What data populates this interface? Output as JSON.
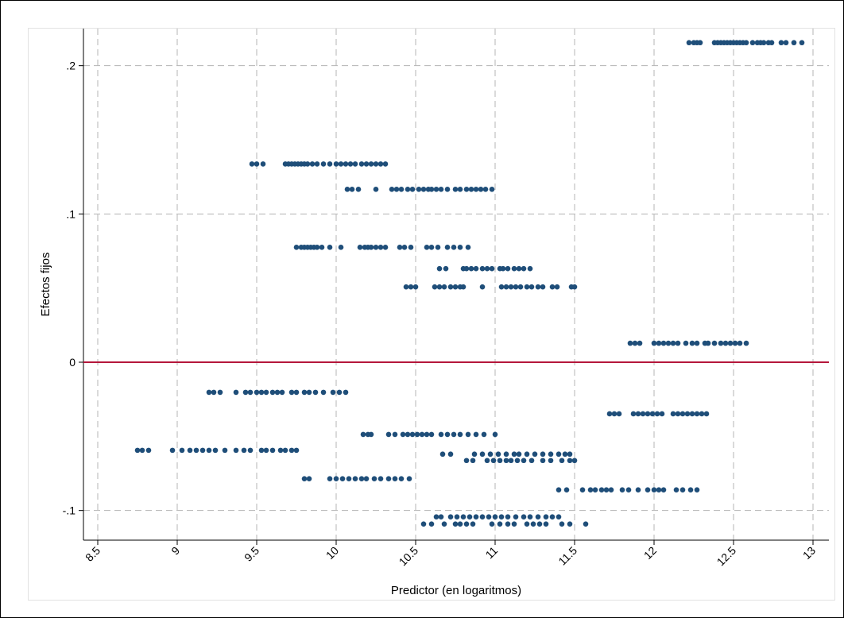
{
  "chart_data": {
    "type": "scatter",
    "xlabel": "Predictor (en logaritmos)",
    "ylabel": "Efectos fijos",
    "color": "#1f4e79",
    "grid": true,
    "hline": 0,
    "hline_color": "#b5173b",
    "xlim": [
      8.41,
      13.1
    ],
    "ylim": [
      -0.12,
      0.225
    ],
    "xticks": [
      8.5,
      9,
      9.5,
      10,
      10.5,
      11,
      11.5,
      12,
      12.5,
      13
    ],
    "yticks": [
      {
        "value": -0.1,
        "label": "-.1"
      },
      0,
      {
        "value": 0.1,
        "label": ".1"
      },
      {
        "value": 0.2,
        "label": ".2"
      }
    ],
    "series": [
      {
        "x": [
          12.22,
          12.25,
          12.27,
          12.29,
          12.38,
          12.4,
          12.42,
          12.44,
          12.46,
          12.48,
          12.5,
          12.52,
          12.54,
          12.56,
          12.58,
          12.62,
          12.65,
          12.67,
          12.69,
          12.72,
          12.74,
          12.8,
          12.83,
          12.88,
          12.93
        ],
        "values": [
          0.2155,
          0.2155,
          0.2155,
          0.2155,
          0.2155,
          0.2155,
          0.2155,
          0.2155,
          0.2155,
          0.2155,
          0.2155,
          0.2155,
          0.2155,
          0.2155,
          0.2155,
          0.2155,
          0.2155,
          0.2155,
          0.2155,
          0.2155,
          0.2155,
          0.2155,
          0.2155,
          0.2155,
          0.2155
        ]
      },
      {
        "x": [
          9.47,
          9.5,
          9.54,
          9.68,
          9.7,
          9.72,
          9.74,
          9.76,
          9.78,
          9.8,
          9.82,
          9.85,
          9.88,
          9.92,
          9.96,
          10.0,
          10.03,
          10.06,
          10.09,
          10.12,
          10.16,
          10.19,
          10.22,
          10.25,
          10.28,
          10.31
        ],
        "values": [
          0.1337,
          0.1337,
          0.1337,
          0.1337,
          0.1337,
          0.1337,
          0.1337,
          0.1337,
          0.1337,
          0.1337,
          0.1337,
          0.1337,
          0.1337,
          0.1337,
          0.1337,
          0.1337,
          0.1337,
          0.1337,
          0.1337,
          0.1337,
          0.1337,
          0.1337,
          0.1337,
          0.1337,
          0.1337,
          0.1337
        ]
      },
      {
        "x": [
          10.07,
          10.1,
          10.14,
          10.25,
          10.35,
          10.38,
          10.41,
          10.45,
          10.48,
          10.52,
          10.55,
          10.58,
          10.6,
          10.63,
          10.66,
          10.7,
          10.75,
          10.78,
          10.82,
          10.85,
          10.88,
          10.91,
          10.94,
          10.98
        ],
        "values": [
          0.1166,
          0.1166,
          0.1166,
          0.1166,
          0.1166,
          0.1166,
          0.1166,
          0.1166,
          0.1166,
          0.1166,
          0.1166,
          0.1166,
          0.1166,
          0.1166,
          0.1166,
          0.1166,
          0.1166,
          0.1166,
          0.1166,
          0.1166,
          0.1166,
          0.1166,
          0.1166,
          0.1166
        ]
      },
      {
        "x": [
          9.75,
          9.78,
          9.8,
          9.82,
          9.84,
          9.86,
          9.88,
          9.91,
          9.96,
          10.03,
          10.15,
          10.18,
          10.2,
          10.22,
          10.25,
          10.28,
          10.31,
          10.4,
          10.43,
          10.47,
          10.57,
          10.6,
          10.64,
          10.7,
          10.74,
          10.78,
          10.83
        ],
        "values": [
          0.0775,
          0.0775,
          0.0775,
          0.0775,
          0.0775,
          0.0775,
          0.0775,
          0.0775,
          0.0775,
          0.0775,
          0.0775,
          0.0775,
          0.0775,
          0.0775,
          0.0775,
          0.0775,
          0.0775,
          0.0775,
          0.0775,
          0.0775,
          0.0775,
          0.0775,
          0.0775,
          0.0775,
          0.0775,
          0.0775,
          0.0775
        ]
      },
      {
        "x": [
          10.65,
          10.69,
          10.8,
          10.82,
          10.85,
          10.88,
          10.92,
          10.95,
          10.98,
          11.03,
          11.05,
          11.08,
          11.12,
          11.15,
          11.18,
          11.22
        ],
        "values": [
          0.0631,
          0.0631,
          0.0631,
          0.0631,
          0.0631,
          0.0631,
          0.0631,
          0.0631,
          0.0631,
          0.0631,
          0.0631,
          0.0631,
          0.0631,
          0.0631,
          0.0631,
          0.0631
        ]
      },
      {
        "x": [
          10.44,
          10.47,
          10.5,
          10.62,
          10.65,
          10.68,
          10.72,
          10.75,
          10.78,
          10.8,
          10.92,
          11.04,
          11.07,
          11.1,
          11.13,
          11.16,
          11.2,
          11.23,
          11.27,
          11.3,
          11.36,
          11.39,
          11.48,
          11.5
        ],
        "values": [
          0.0508,
          0.0508,
          0.0508,
          0.0508,
          0.0508,
          0.0508,
          0.0508,
          0.0508,
          0.0508,
          0.0508,
          0.0508,
          0.0508,
          0.0508,
          0.0508,
          0.0508,
          0.0508,
          0.0508,
          0.0508,
          0.0508,
          0.0508,
          0.0508,
          0.0508,
          0.0508,
          0.0508
        ]
      },
      {
        "x": [
          11.85,
          11.88,
          11.91,
          12.0,
          12.03,
          12.06,
          12.09,
          12.12,
          12.15,
          12.2,
          12.24,
          12.27,
          12.32,
          12.34,
          12.38,
          12.42,
          12.45,
          12.48,
          12.51,
          12.54,
          12.58
        ],
        "values": [
          0.0128,
          0.0128,
          0.0128,
          0.0128,
          0.0128,
          0.0128,
          0.0128,
          0.0128,
          0.0128,
          0.0128,
          0.0128,
          0.0128,
          0.0128,
          0.0128,
          0.0128,
          0.0128,
          0.0128,
          0.0128,
          0.0128,
          0.0128,
          0.0128
        ]
      },
      {
        "x": [
          9.2,
          9.23,
          9.27,
          9.37,
          9.43,
          9.46,
          9.5,
          9.53,
          9.56,
          9.6,
          9.63,
          9.66,
          9.72,
          9.75,
          9.8,
          9.83,
          9.87,
          9.92,
          9.98,
          10.02,
          10.06
        ],
        "values": [
          -0.0203,
          -0.0203,
          -0.0203,
          -0.0203,
          -0.0203,
          -0.0203,
          -0.0203,
          -0.0203,
          -0.0203,
          -0.0203,
          -0.0203,
          -0.0203,
          -0.0203,
          -0.0203,
          -0.0203,
          -0.0203,
          -0.0203,
          -0.0203,
          -0.0203,
          -0.0203,
          -0.0203
        ]
      },
      {
        "x": [
          11.72,
          11.75,
          11.78,
          11.87,
          11.9,
          11.93,
          11.96,
          11.99,
          12.02,
          12.05,
          12.12,
          12.15,
          12.18,
          12.21,
          12.24,
          12.27,
          12.3,
          12.33
        ],
        "values": [
          -0.0348,
          -0.0348,
          -0.0348,
          -0.0348,
          -0.0348,
          -0.0348,
          -0.0348,
          -0.0348,
          -0.0348,
          -0.0348,
          -0.0348,
          -0.0348,
          -0.0348,
          -0.0348,
          -0.0348,
          -0.0348,
          -0.0348,
          -0.0348
        ]
      },
      {
        "x": [
          10.17,
          10.2,
          10.22,
          10.33,
          10.37,
          10.42,
          10.45,
          10.48,
          10.51,
          10.54,
          10.57,
          10.6,
          10.66,
          10.7,
          10.74,
          10.78,
          10.83,
          10.88,
          10.93,
          11.0
        ],
        "values": [
          -0.0487,
          -0.0487,
          -0.0487,
          -0.0487,
          -0.0487,
          -0.0487,
          -0.0487,
          -0.0487,
          -0.0487,
          -0.0487,
          -0.0487,
          -0.0487,
          -0.0487,
          -0.0487,
          -0.0487,
          -0.0487,
          -0.0487,
          -0.0487,
          -0.0487,
          -0.0487
        ]
      },
      {
        "x": [
          8.75,
          8.78,
          8.82,
          8.97,
          9.03,
          9.08,
          9.12,
          9.16,
          9.2,
          9.24,
          9.3,
          9.37,
          9.42,
          9.46,
          9.53,
          9.56,
          9.6,
          9.65,
          9.68,
          9.72,
          9.75
        ],
        "values": [
          -0.0594,
          -0.0594,
          -0.0594,
          -0.0594,
          -0.0594,
          -0.0594,
          -0.0594,
          -0.0594,
          -0.0594,
          -0.0594,
          -0.0594,
          -0.0594,
          -0.0594,
          -0.0594,
          -0.0594,
          -0.0594,
          -0.0594,
          -0.0594,
          -0.0594,
          -0.0594,
          -0.0594
        ]
      },
      {
        "x": [
          10.67,
          10.72,
          10.87,
          10.92,
          10.97,
          11.02,
          11.07,
          11.12,
          11.15,
          11.2,
          11.25,
          11.3,
          11.35,
          11.4,
          11.44,
          11.47
        ],
        "values": [
          -0.062,
          -0.062,
          -0.062,
          -0.062,
          -0.062,
          -0.062,
          -0.062,
          -0.062,
          -0.062,
          -0.062,
          -0.062,
          -0.062,
          -0.062,
          -0.062,
          -0.062,
          -0.062
        ]
      },
      {
        "x": [
          10.82,
          10.86,
          10.95,
          10.99,
          11.03,
          11.07,
          11.1,
          11.14,
          11.18,
          11.23,
          11.3,
          11.35,
          11.42,
          11.47,
          11.5
        ],
        "values": [
          -0.0663,
          -0.0663,
          -0.0663,
          -0.0663,
          -0.0663,
          -0.0663,
          -0.0663,
          -0.0663,
          -0.0663,
          -0.0663,
          -0.0663,
          -0.0663,
          -0.0663,
          -0.0663,
          -0.0663
        ]
      },
      {
        "x": [
          9.8,
          9.83,
          9.96,
          10.0,
          10.04,
          10.08,
          10.12,
          10.16,
          10.19,
          10.24,
          10.28,
          10.33,
          10.37,
          10.41,
          10.46
        ],
        "values": [
          -0.0786,
          -0.0786,
          -0.0786,
          -0.0786,
          -0.0786,
          -0.0786,
          -0.0786,
          -0.0786,
          -0.0786,
          -0.0786,
          -0.0786,
          -0.0786,
          -0.0786,
          -0.0786,
          -0.0786
        ]
      },
      {
        "x": [
          11.4,
          11.45,
          11.55,
          11.6,
          11.63,
          11.67,
          11.7,
          11.73,
          11.8,
          11.84,
          11.9,
          11.96,
          12.0,
          12.03,
          12.06,
          12.14,
          12.18,
          12.23,
          12.27
        ],
        "values": [
          -0.0861,
          -0.0861,
          -0.0861,
          -0.0861,
          -0.0861,
          -0.0861,
          -0.0861,
          -0.0861,
          -0.0861,
          -0.0861,
          -0.0861,
          -0.0861,
          -0.0861,
          -0.0861,
          -0.0861,
          -0.0861,
          -0.0861,
          -0.0861,
          -0.0861
        ]
      },
      {
        "x": [
          10.63,
          10.66,
          10.72,
          10.76,
          10.8,
          10.84,
          10.88,
          10.92,
          10.96,
          11.0,
          11.04,
          11.08,
          11.13,
          11.18,
          11.22,
          11.27,
          11.32,
          11.36,
          11.4
        ],
        "values": [
          -0.1043,
          -0.1043,
          -0.1043,
          -0.1043,
          -0.1043,
          -0.1043,
          -0.1043,
          -0.1043,
          -0.1043,
          -0.1043,
          -0.1043,
          -0.1043,
          -0.1043,
          -0.1043,
          -0.1043,
          -0.1043,
          -0.1043,
          -0.1043,
          -0.1043
        ]
      },
      {
        "x": [
          10.55,
          10.6,
          10.68,
          10.75,
          10.78,
          10.82,
          10.86,
          10.98,
          11.03,
          11.08,
          11.12,
          11.2,
          11.24,
          11.28,
          11.32,
          11.42,
          11.47,
          11.57
        ],
        "values": [
          -0.1091,
          -0.1091,
          -0.1091,
          -0.1091,
          -0.1091,
          -0.1091,
          -0.1091,
          -0.1091,
          -0.1091,
          -0.1091,
          -0.1091,
          -0.1091,
          -0.1091,
          -0.1091,
          -0.1091,
          -0.1091,
          -0.1091,
          -0.1091
        ]
      }
    ]
  }
}
